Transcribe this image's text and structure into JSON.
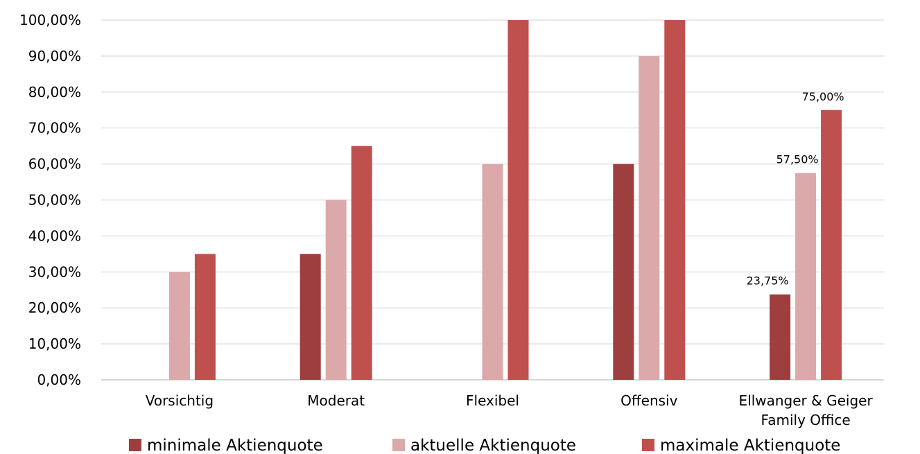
{
  "chart_data": {
    "type": "bar",
    "title": "",
    "xlabel": "",
    "ylabel": "",
    "ylim": [
      0,
      100
    ],
    "yticks": [
      {
        "value": 0,
        "label": "0,00%"
      },
      {
        "value": 10,
        "label": "10,00%"
      },
      {
        "value": 20,
        "label": "20,00%"
      },
      {
        "value": 30,
        "label": "30,00%"
      },
      {
        "value": 40,
        "label": "40,00%"
      },
      {
        "value": 50,
        "label": "50,00%"
      },
      {
        "value": 60,
        "label": "60,00%"
      },
      {
        "value": 70,
        "label": "70,00%"
      },
      {
        "value": 80,
        "label": "80,00%"
      },
      {
        "value": 90,
        "label": "90,00%"
      },
      {
        "value": 100,
        "label": "100,00%"
      }
    ],
    "categories": [
      {
        "lines": [
          "Vorsichtig"
        ]
      },
      {
        "lines": [
          "Moderat"
        ]
      },
      {
        "lines": [
          "Flexibel"
        ]
      },
      {
        "lines": [
          "Offensiv"
        ]
      },
      {
        "lines": [
          "Ellwanger & Geiger",
          "Family Office"
        ]
      }
    ],
    "series": [
      {
        "name": "minimale Aktienquote",
        "color": "#9e3e3e",
        "values": [
          0,
          35,
          0,
          60,
          23.75
        ]
      },
      {
        "name": "aktuelle Aktienquote",
        "color": "#dba9a9",
        "values": [
          30,
          50,
          60,
          90,
          57.5
        ]
      },
      {
        "name": "maximale Aktienquote",
        "color": "#c0504d",
        "values": [
          35,
          65,
          100,
          100,
          75
        ]
      }
    ],
    "data_labels": [
      {
        "category": 4,
        "series": 0,
        "text": "23,75%"
      },
      {
        "category": 4,
        "series": 1,
        "text": "57,50%"
      },
      {
        "category": 4,
        "series": 2,
        "text": "75,00%"
      }
    ],
    "grid": true,
    "legend_position": "bottom"
  }
}
